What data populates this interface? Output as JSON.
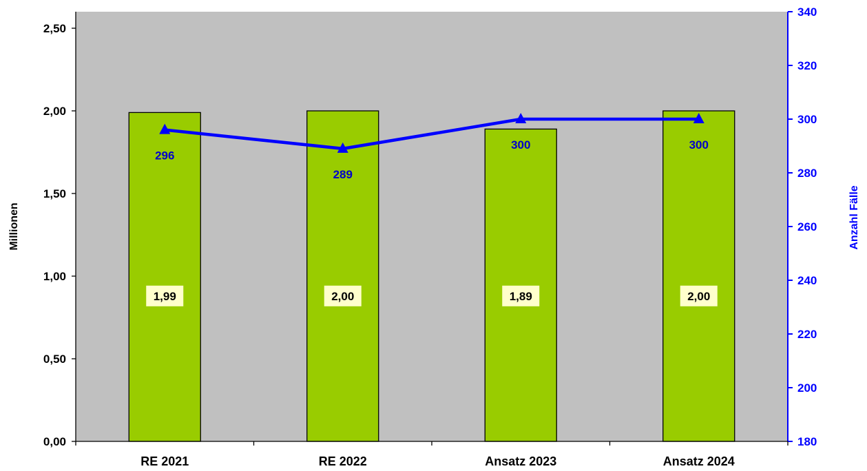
{
  "chart_data": {
    "type": "bar",
    "categories": [
      "RE 2021",
      "RE 2022",
      "Ansatz 2023",
      "Ansatz 2024"
    ],
    "series": [
      {
        "type": "bar",
        "axis": "left",
        "values": [
          1.99,
          2.0,
          1.89,
          2.0
        ],
        "labels": [
          "1,99",
          "2,00",
          "1,89",
          "2,00"
        ],
        "color": "#99cc00"
      },
      {
        "type": "line",
        "axis": "right",
        "values": [
          296,
          289,
          300,
          300
        ],
        "labels": [
          "296",
          "289",
          "300",
          "300"
        ],
        "color": "#0000ff",
        "marker": "triangle"
      }
    ],
    "y_left": {
      "label": "Millionen",
      "range": [
        0,
        2.6
      ],
      "ticks": [
        0,
        0.5,
        1.0,
        1.5,
        2.0,
        2.5
      ],
      "tick_labels": [
        "0,00",
        "0,50",
        "1,00",
        "1,50",
        "2,00",
        "2,50"
      ]
    },
    "y_right": {
      "label": "Anzahl Fälle",
      "range": [
        180,
        340
      ],
      "ticks": [
        180,
        200,
        220,
        240,
        260,
        280,
        300,
        320,
        340
      ],
      "tick_labels": [
        "180",
        "200",
        "220",
        "240",
        "260",
        "280",
        "300",
        "320",
        "340"
      ]
    },
    "plot_background": "#c0c0c0",
    "bar_label_background": "#ffffcc",
    "grid": false,
    "legend": "none"
  }
}
